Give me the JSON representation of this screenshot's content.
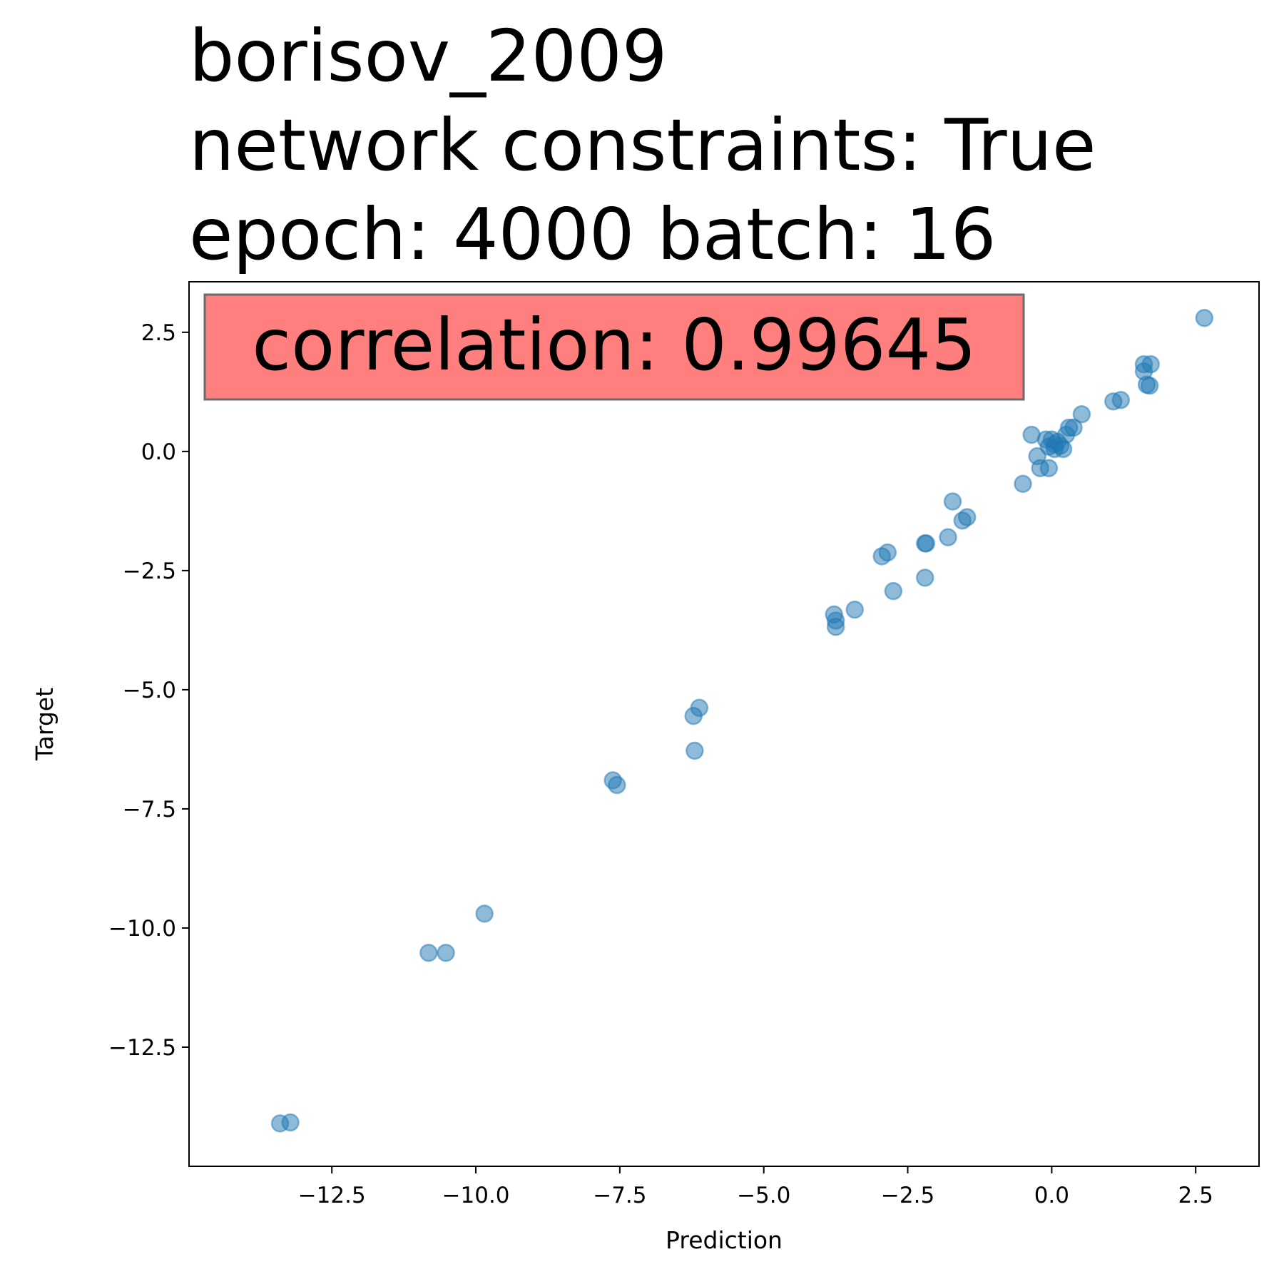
{
  "chart_data": {
    "type": "scatter",
    "title_lines": [
      "borisov_2009",
      "network constraints: True",
      "epoch: 4000 batch: 16"
    ],
    "xlabel": "Prediction",
    "ylabel": "Target",
    "xlim": [
      -14.98,
      3.6
    ],
    "ylim": [
      -15.0,
      3.56
    ],
    "xticks": [
      -12.5,
      -10.0,
      -7.5,
      -5.0,
      -2.5,
      0.0,
      2.5
    ],
    "xtick_labels": [
      "−12.5",
      "−10.0",
      "−7.5",
      "−5.0",
      "−2.5",
      "0.0",
      "2.5"
    ],
    "yticks": [
      2.5,
      0.0,
      -2.5,
      -5.0,
      -7.5,
      -10.0,
      -12.5
    ],
    "ytick_labels": [
      "2.5",
      "0.0",
      "−2.5",
      "−5.0",
      "−7.5",
      "−10.0",
      "−12.5"
    ],
    "annotation": "correlation: 0.99645",
    "grid": false,
    "colors": {
      "point": "#1f77b4",
      "annotation_bg": "#ff7f7f",
      "annotation_border": "#6b6b6b"
    },
    "points": [
      {
        "x": 2.65,
        "y": 2.8
      },
      {
        "x": 1.6,
        "y": 1.83
      },
      {
        "x": 1.72,
        "y": 1.83
      },
      {
        "x": 1.6,
        "y": 1.68
      },
      {
        "x": 1.65,
        "y": 1.4
      },
      {
        "x": 1.7,
        "y": 1.38
      },
      {
        "x": 1.07,
        "y": 1.05
      },
      {
        "x": 1.2,
        "y": 1.08
      },
      {
        "x": 0.52,
        "y": 0.78
      },
      {
        "x": 0.3,
        "y": 0.5
      },
      {
        "x": 0.38,
        "y": 0.5
      },
      {
        "x": 0.25,
        "y": 0.35
      },
      {
        "x": -0.35,
        "y": 0.35
      },
      {
        "x": -0.1,
        "y": 0.25
      },
      {
        "x": 0.0,
        "y": 0.25
      },
      {
        "x": 0.05,
        "y": 0.15
      },
      {
        "x": 0.1,
        "y": 0.2
      },
      {
        "x": 0.15,
        "y": 0.12
      },
      {
        "x": -0.05,
        "y": 0.1
      },
      {
        "x": 0.05,
        "y": 0.05
      },
      {
        "x": 0.2,
        "y": 0.05
      },
      {
        "x": -0.25,
        "y": -0.1
      },
      {
        "x": -0.2,
        "y": -0.35
      },
      {
        "x": -0.05,
        "y": -0.35
      },
      {
        "x": -0.5,
        "y": -0.68
      },
      {
        "x": -1.72,
        "y": -1.05
      },
      {
        "x": -1.55,
        "y": -1.45
      },
      {
        "x": -1.47,
        "y": -1.38
      },
      {
        "x": -1.8,
        "y": -1.8
      },
      {
        "x": -2.2,
        "y": -1.93
      },
      {
        "x": -2.18,
        "y": -1.93
      },
      {
        "x": -2.95,
        "y": -2.2
      },
      {
        "x": -2.85,
        "y": -2.12
      },
      {
        "x": -2.2,
        "y": -2.65
      },
      {
        "x": -2.75,
        "y": -2.93
      },
      {
        "x": -3.42,
        "y": -3.32
      },
      {
        "x": -3.78,
        "y": -3.42
      },
      {
        "x": -3.75,
        "y": -3.55
      },
      {
        "x": -3.75,
        "y": -3.68
      },
      {
        "x": -6.12,
        "y": -5.38
      },
      {
        "x": -6.22,
        "y": -5.55
      },
      {
        "x": -6.2,
        "y": -6.28
      },
      {
        "x": -7.62,
        "y": -6.9
      },
      {
        "x": -7.55,
        "y": -7.0
      },
      {
        "x": -9.85,
        "y": -9.7
      },
      {
        "x": -10.82,
        "y": -10.52
      },
      {
        "x": -10.52,
        "y": -10.52
      },
      {
        "x": -13.4,
        "y": -14.1
      },
      {
        "x": -13.22,
        "y": -14.08
      }
    ]
  }
}
